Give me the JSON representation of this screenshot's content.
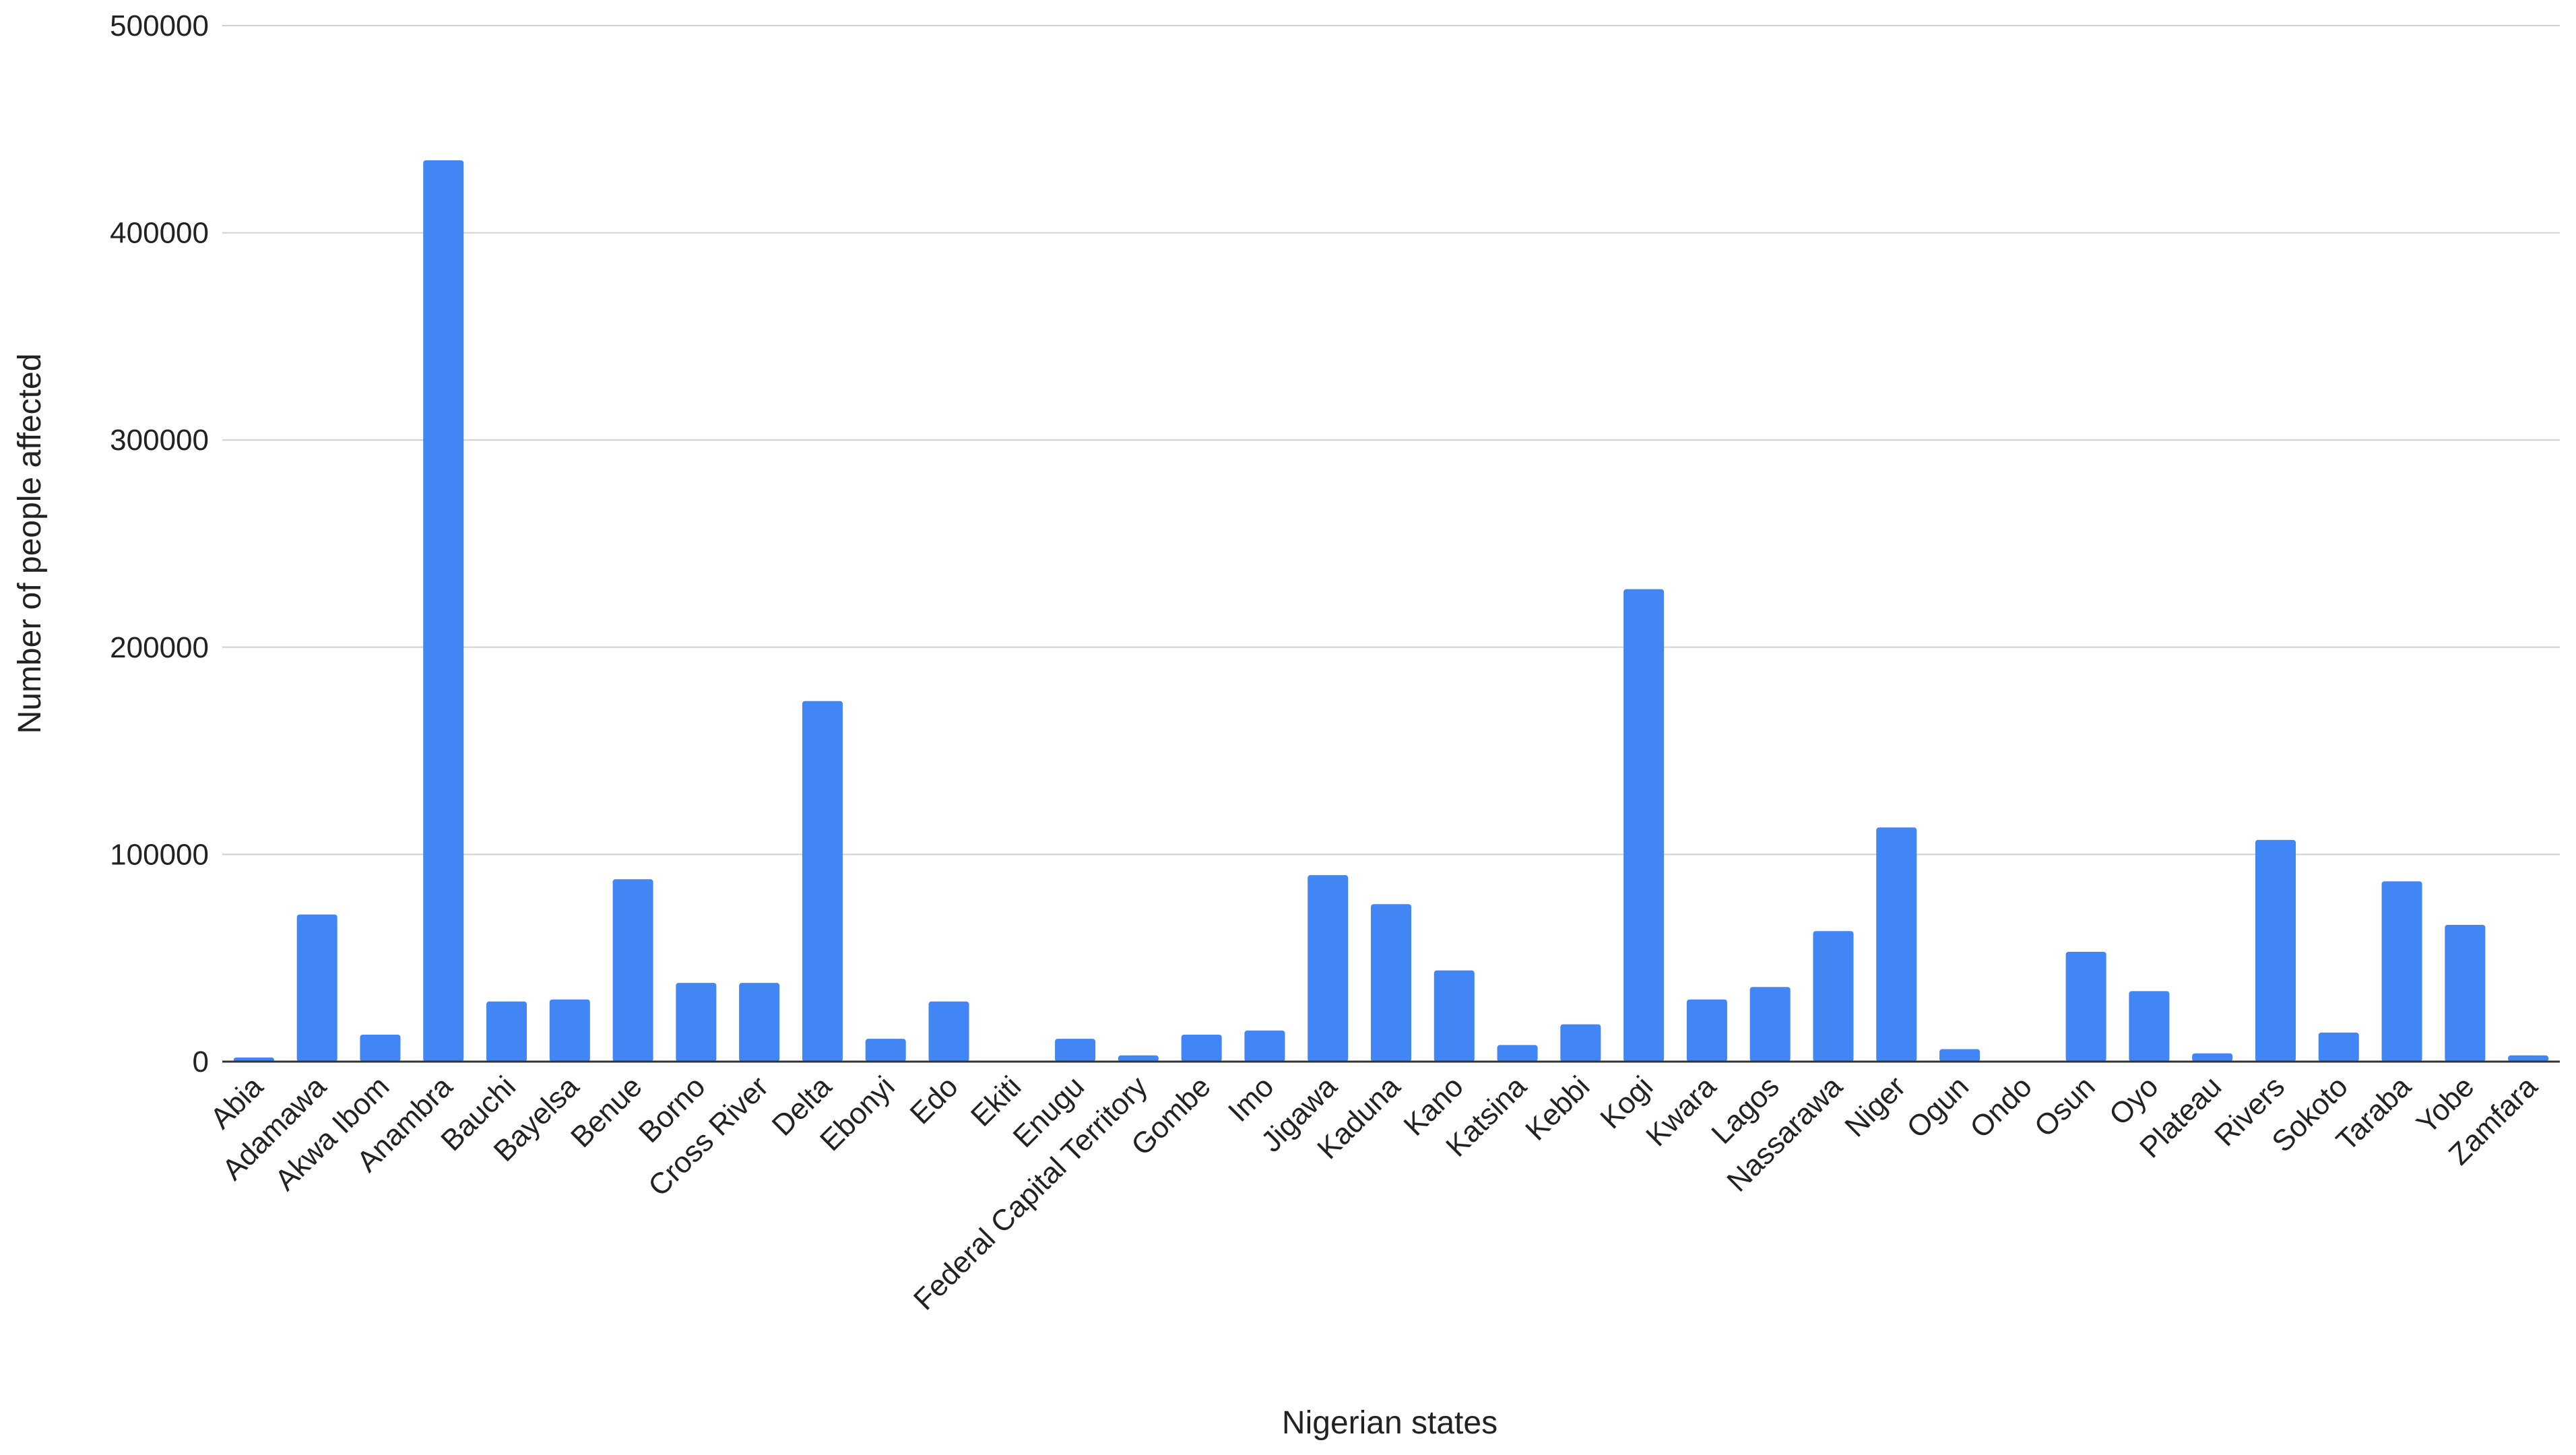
{
  "chart_data": {
    "type": "bar",
    "title": "",
    "xlabel": "Nigerian states",
    "ylabel": "Number of people affected",
    "ylim": [
      0,
      500000
    ],
    "yticks": [
      "0",
      "100000",
      "200000",
      "300000",
      "400000",
      "500000"
    ],
    "grid": true,
    "legend": "none",
    "bar_color": "#4285f4",
    "categories": [
      "Abia",
      "Adamawa",
      "Akwa Ibom",
      "Anambra",
      "Bauchi",
      "Bayelsa",
      "Benue",
      "Borno",
      "Cross River",
      "Delta",
      "Ebonyi",
      "Edo",
      "Ekiti",
      "Enugu",
      "Federal Capital Territory",
      "Gombe",
      "Imo",
      "Jigawa",
      "Kaduna",
      "Kano",
      "Katsina",
      "Kebbi",
      "Kogi",
      "Kwara",
      "Lagos",
      "Nassarawa",
      "Niger",
      "Ogun",
      "Ondo",
      "Osun",
      "Oyo",
      "Plateau",
      "Rivers",
      "Sokoto",
      "Taraba",
      "Yobe",
      "Zamfara"
    ],
    "values": [
      2000,
      71000,
      13000,
      435000,
      29000,
      30000,
      88000,
      38000,
      38000,
      174000,
      11000,
      29000,
      0,
      11000,
      3000,
      13000,
      15000,
      90000,
      76000,
      44000,
      8000,
      18000,
      228000,
      30000,
      36000,
      63000,
      113000,
      6000,
      0,
      53000,
      34000,
      4000,
      107000,
      14000,
      87000,
      66000,
      3000
    ]
  }
}
